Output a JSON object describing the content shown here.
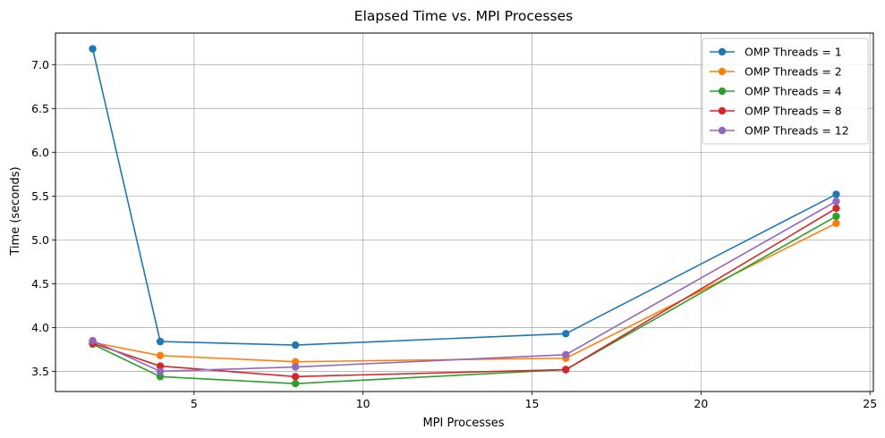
{
  "chart_data": {
    "type": "line",
    "title": "Elapsed Time vs. MPI Processes",
    "xlabel": "MPI Processes",
    "ylabel": "Time (seconds)",
    "xlim": [
      0.9,
      25.1
    ],
    "ylim": [
      3.27,
      7.36
    ],
    "xticks": [
      5,
      10,
      15,
      20,
      25
    ],
    "yticks": [
      3.5,
      4.0,
      4.5,
      5.0,
      5.5,
      6.0,
      6.5,
      7.0
    ],
    "grid": true,
    "legend_position": "top-right",
    "x": [
      2,
      4,
      8,
      16,
      24
    ],
    "series": [
      {
        "name": "OMP Threads = 1",
        "color": "#1f77b4",
        "values": [
          7.18,
          3.84,
          3.8,
          3.93,
          5.52
        ]
      },
      {
        "name": "OMP Threads = 2",
        "color": "#ff7f0e",
        "values": [
          3.83,
          3.68,
          3.61,
          3.65,
          5.19
        ]
      },
      {
        "name": "OMP Threads = 4",
        "color": "#2ca02c",
        "values": [
          3.81,
          3.44,
          3.36,
          3.52,
          5.27
        ]
      },
      {
        "name": "OMP Threads = 8",
        "color": "#d62728",
        "values": [
          3.82,
          3.56,
          3.44,
          3.52,
          5.36
        ]
      },
      {
        "name": "OMP Threads = 12",
        "color": "#9467bd",
        "values": [
          3.85,
          3.5,
          3.55,
          3.69,
          5.44
        ]
      }
    ]
  }
}
